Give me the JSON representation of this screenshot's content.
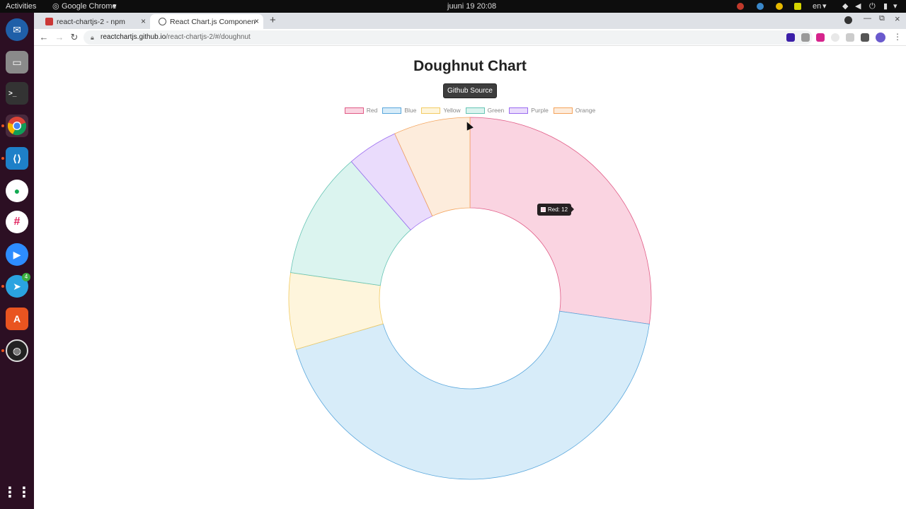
{
  "topbar": {
    "activities": "Activities",
    "app": "Google Chrome",
    "clock": "juuni 19  20:08",
    "lang": "en"
  },
  "dock": {
    "badge_telegram": "4"
  },
  "browser": {
    "tabs": [
      {
        "label": "react-chartjs-2 - npm",
        "close": "×"
      },
      {
        "label": "React Chart.js Componen",
        "close": "×"
      }
    ],
    "new_tab": "+",
    "url_host": "reactchartjs.github.io",
    "url_path": "/react-chartjs-2/#/doughnut"
  },
  "page": {
    "title": "Doughnut Chart",
    "source_button": "Github Source"
  },
  "chart_data": {
    "type": "doughnut",
    "categories": [
      "Red",
      "Blue",
      "Yellow",
      "Green",
      "Purple",
      "Orange"
    ],
    "values": [
      12,
      19,
      3,
      5,
      2,
      3
    ],
    "fill_colors": [
      "#fad4e1",
      "#d7ecf9",
      "#fef5dc",
      "#dbf4ef",
      "#eadcfc",
      "#fdecdc"
    ],
    "border_colors": [
      "#e05b86",
      "#5aa7dc",
      "#f2cb63",
      "#66c4b4",
      "#9a6bf0",
      "#f4a35b"
    ],
    "legend_position": "top",
    "tooltip": "Red: 12"
  }
}
